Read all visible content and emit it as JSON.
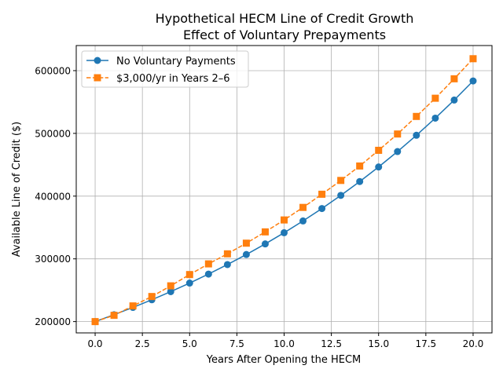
{
  "chart_data": {
    "type": "line",
    "title": "Hypothetical HECM Line of Credit Growth\nEffect of Voluntary Prepayments",
    "title_lines": [
      "Hypothetical HECM Line of Credit Growth",
      "Effect of Voluntary Prepayments"
    ],
    "xlabel": "Years After Opening the HECM",
    "ylabel": "Available Line of Credit ($)",
    "xlim": [
      -1,
      21
    ],
    "ylim": [
      182000,
      640000
    ],
    "xticks": [
      0,
      2.5,
      5,
      7.5,
      10,
      12.5,
      15,
      17.5,
      20
    ],
    "xtick_labels": [
      "0.0",
      "2.5",
      "5.0",
      "7.5",
      "10.0",
      "12.5",
      "15.0",
      "17.5",
      "20.0"
    ],
    "yticks": [
      200000,
      300000,
      400000,
      500000,
      600000
    ],
    "ytick_labels": [
      "200000",
      "300000",
      "400000",
      "500000",
      "600000"
    ],
    "grid": true,
    "legend_position": "upper-left",
    "x": [
      0,
      1,
      2,
      3,
      4,
      5,
      6,
      7,
      8,
      9,
      10,
      11,
      12,
      13,
      14,
      15,
      16,
      17,
      18,
      19,
      20
    ],
    "series": [
      {
        "name": "No Voluntary Payments",
        "color": "#1f77b4",
        "marker": "circle",
        "linestyle": "solid",
        "values": [
          200000,
          211000,
          222605,
          234848,
          247765,
          261392,
          275769,
          290936,
          306937,
          323819,
          341629,
          360419,
          380242,
          401155,
          423219,
          446496,
          471053,
          496961,
          524294,
          553136,
          583559
        ]
      },
      {
        "name": "$3,000/yr in Years 2–6",
        "color": "#ff7f0e",
        "marker": "square",
        "linestyle": "dashed",
        "values": [
          200000,
          210000,
          225000,
          240000,
          257000,
          275000,
          292000,
          308000,
          325000,
          343000,
          362000,
          382000,
          403000,
          425000,
          448000,
          473000,
          499000,
          527000,
          556000,
          587000,
          619000
        ]
      }
    ]
  }
}
